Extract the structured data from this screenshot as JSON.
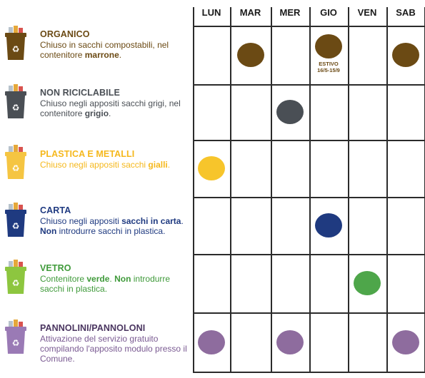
{
  "days": [
    "LUN",
    "MAR",
    "MER",
    "GIO",
    "VEN",
    "SAB"
  ],
  "categories": [
    {
      "key": "organico",
      "title": "ORGANICO",
      "title_color": "#6b4a14",
      "text_color": "#6b4a14",
      "desc_parts": [
        {
          "text": "Chiuso in sacchi compostabili, nel contenitore ",
          "bold": false
        },
        {
          "text": "marrone",
          "bold": true
        },
        {
          "text": ".",
          "bold": false
        }
      ],
      "bin_color": "#6b4a14",
      "dot_color": "#6b4a14",
      "bin_icon": "organic-bin-icon"
    },
    {
      "key": "non-riciclabile",
      "title": "NON RICICLABILE",
      "title_color": "#4a4f55",
      "text_color": "#4a4f55",
      "desc_parts": [
        {
          "text": "Chiuso negli appositi sacchi grigi, nel contenitore ",
          "bold": false
        },
        {
          "text": "grigio",
          "bold": true
        },
        {
          "text": ".",
          "bold": false
        }
      ],
      "bin_color": "#4a4f55",
      "dot_color": "#4a4f55",
      "bin_icon": "non-recyclable-bin-icon"
    },
    {
      "key": "plastica",
      "title": "PLASTICA E METALLI",
      "title_color": "#f5b81c",
      "text_color": "#f5b81c",
      "desc_parts": [
        {
          "text": "Chiuso negli appositi sacchi ",
          "bold": false
        },
        {
          "text": "gialli",
          "bold": true
        },
        {
          "text": ".",
          "bold": false
        }
      ],
      "bin_color": "#f5c542",
      "dot_color": "#f7c52b",
      "bin_icon": "plastic-bin-icon"
    },
    {
      "key": "carta",
      "title": "CARTA",
      "title_color": "#1f3a80",
      "text_color": "#1f3a80",
      "desc_parts": [
        {
          "text": "Chiuso negli appositi ",
          "bold": false
        },
        {
          "text": "sacchi in carta",
          "bold": true
        },
        {
          "text": ". ",
          "bold": false
        },
        {
          "text": "Non",
          "bold": true
        },
        {
          "text": " introdurre sacchi in plastica.",
          "bold": false
        }
      ],
      "bin_color": "#1f3a80",
      "dot_color": "#1f3a80",
      "bin_icon": "paper-bin-icon"
    },
    {
      "key": "vetro",
      "title": "VETRO",
      "title_color": "#3f9a3a",
      "text_color": "#3f9a3a",
      "desc_parts": [
        {
          "text": "Contenitore ",
          "bold": false
        },
        {
          "text": "verde",
          "bold": true
        },
        {
          "text": ". ",
          "bold": false
        },
        {
          "text": "Non",
          "bold": true
        },
        {
          "text": " introdurre sacchi in plastica.",
          "bold": false
        }
      ],
      "bin_color": "#8dc63f",
      "dot_color": "#4ea64a",
      "bin_icon": "glass-bin-icon"
    },
    {
      "key": "pannolini",
      "title": "PANNOLINI/PANNOLONI",
      "title_color": "#4a3560",
      "text_color": "#7a5a92",
      "desc_parts": [
        {
          "text": "Attivazione del servizio gratuito compilando l'apposito modulo presso il Comune.",
          "bold": false
        }
      ],
      "bin_color": "#9a7ab5",
      "dot_color": "#8e6c9e",
      "bin_icon": "diaper-bin-icon"
    }
  ],
  "schedule": [
    {
      "category": 0,
      "day": 1
    },
    {
      "category": 0,
      "day": 3
    },
    {
      "category": 0,
      "day": 5
    },
    {
      "category": 1,
      "day": 2
    },
    {
      "category": 2,
      "day": 0
    },
    {
      "category": 3,
      "day": 3
    },
    {
      "category": 4,
      "day": 4
    },
    {
      "category": 5,
      "day": 0
    },
    {
      "category": 5,
      "day": 2
    },
    {
      "category": 5,
      "day": 5
    }
  ],
  "seasonal_note": {
    "category": 0,
    "day": 3,
    "lines": [
      "ESTIVO",
      "16/5-15/9"
    ]
  }
}
